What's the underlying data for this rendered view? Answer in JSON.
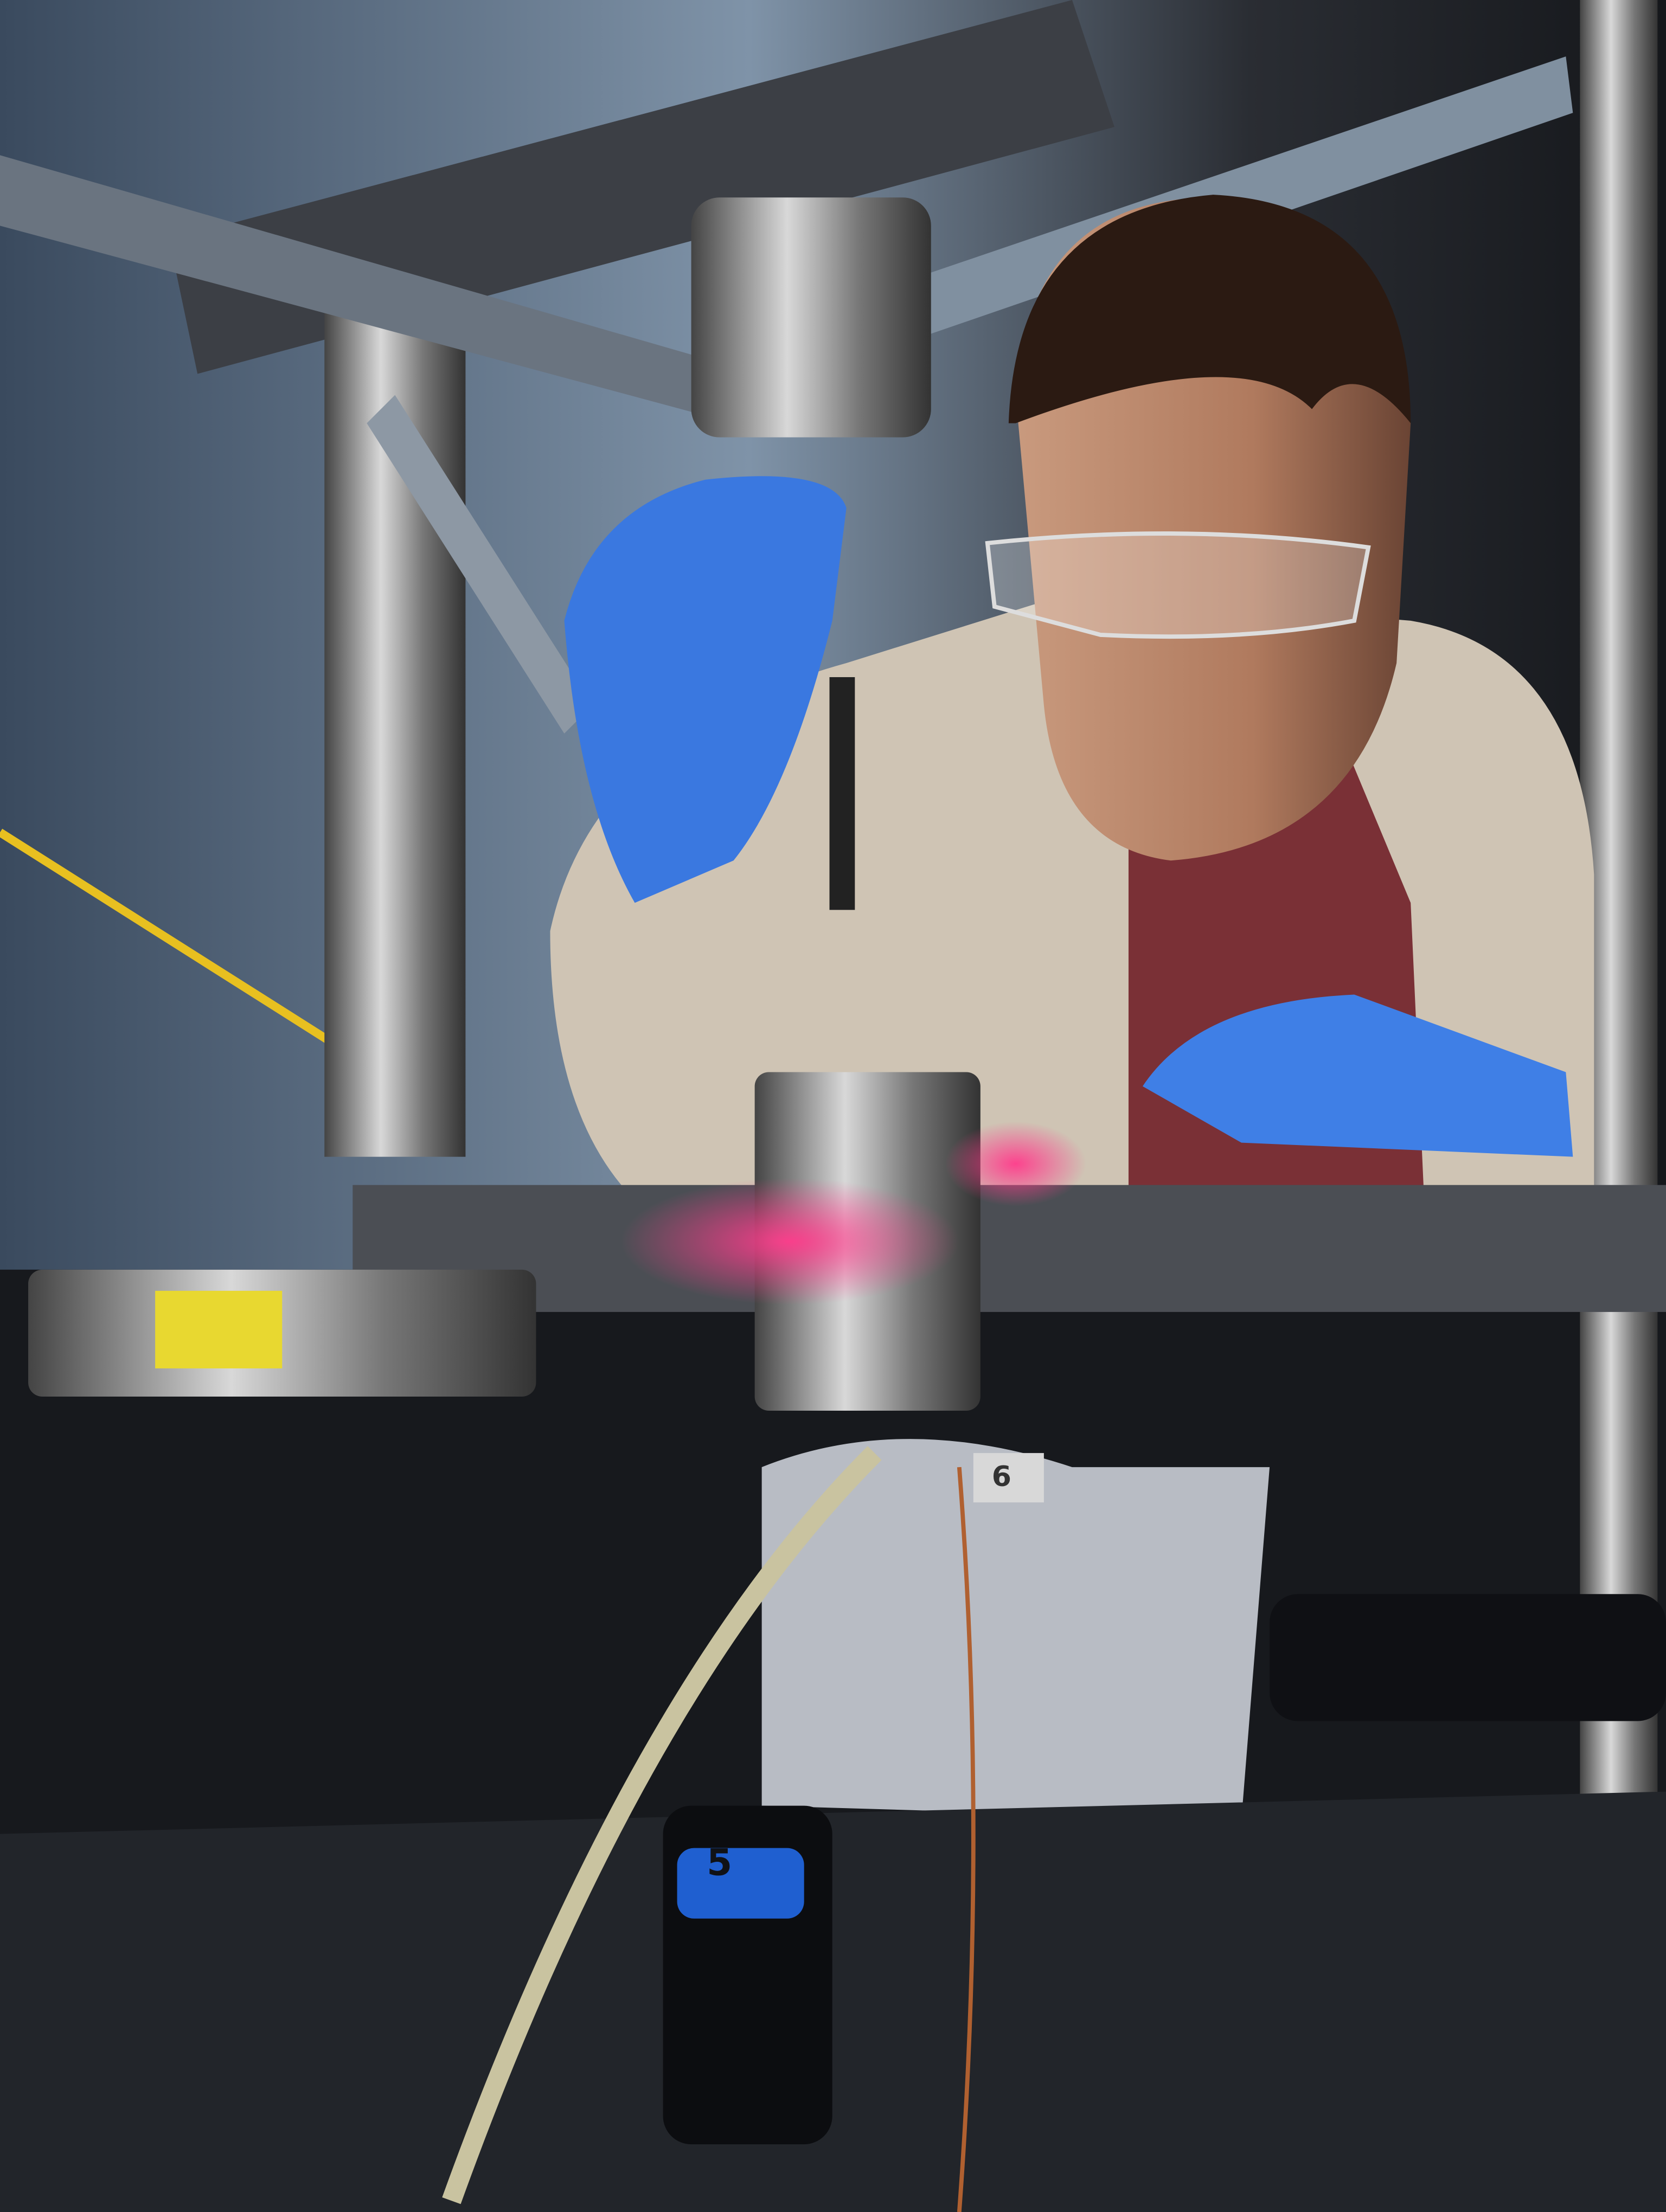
{
  "labels": {
    "tag": "6",
    "cap": "5"
  }
}
